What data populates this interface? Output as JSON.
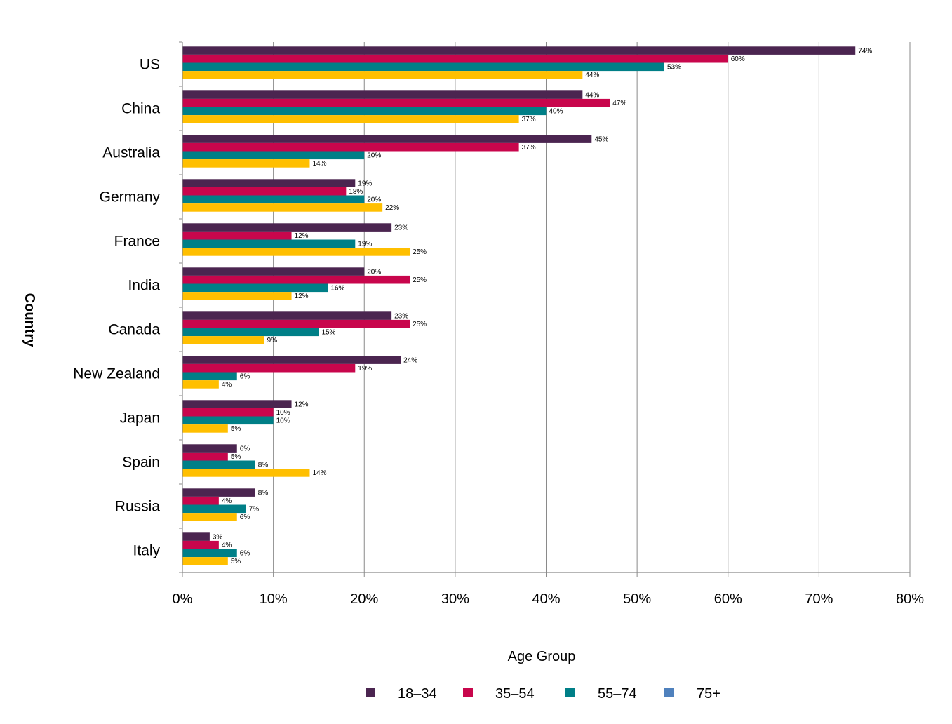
{
  "chart_data": {
    "type": "bar",
    "orientation": "horizontal",
    "categories": [
      "US",
      "China",
      "Australia",
      "Germany",
      "France",
      "India",
      "Canada",
      "New Zealand",
      "Japan",
      "Spain",
      "Russia",
      "Italy"
    ],
    "series": [
      {
        "name": "18–34",
        "color": "#4b2550",
        "values": [
          74,
          44,
          45,
          19,
          23,
          20,
          23,
          24,
          12,
          6,
          8,
          3
        ]
      },
      {
        "name": "35–54",
        "color": "#c8064c",
        "values": [
          60,
          47,
          37,
          18,
          12,
          25,
          25,
          19,
          10,
          5,
          4,
          4
        ]
      },
      {
        "name": "55–74",
        "color": "#007f87",
        "values": [
          53,
          40,
          20,
          20,
          19,
          16,
          15,
          6,
          10,
          8,
          7,
          6
        ]
      },
      {
        "name": "75+",
        "color": "#4f81bd",
        "values": [
          null,
          null,
          null,
          null,
          null,
          null,
          null,
          null,
          null,
          null,
          null,
          null
        ]
      },
      {
        "name": "",
        "color": "#ffbf00",
        "values": [
          44,
          37,
          14,
          22,
          25,
          12,
          9,
          4,
          5,
          14,
          6,
          5
        ]
      }
    ],
    "data_label_suffix": "%",
    "xlabel": "Age Group",
    "ylabel": "Country",
    "xlim": [
      0,
      80
    ],
    "xticks": [
      "0%",
      "10%",
      "20%",
      "30%",
      "40%",
      "50%",
      "60%",
      "70%",
      "80%"
    ],
    "grid": "vertical",
    "legend": {
      "placement": "bottom",
      "entries": [
        "18–34",
        "35–54",
        "55–74",
        "75+"
      ]
    }
  }
}
